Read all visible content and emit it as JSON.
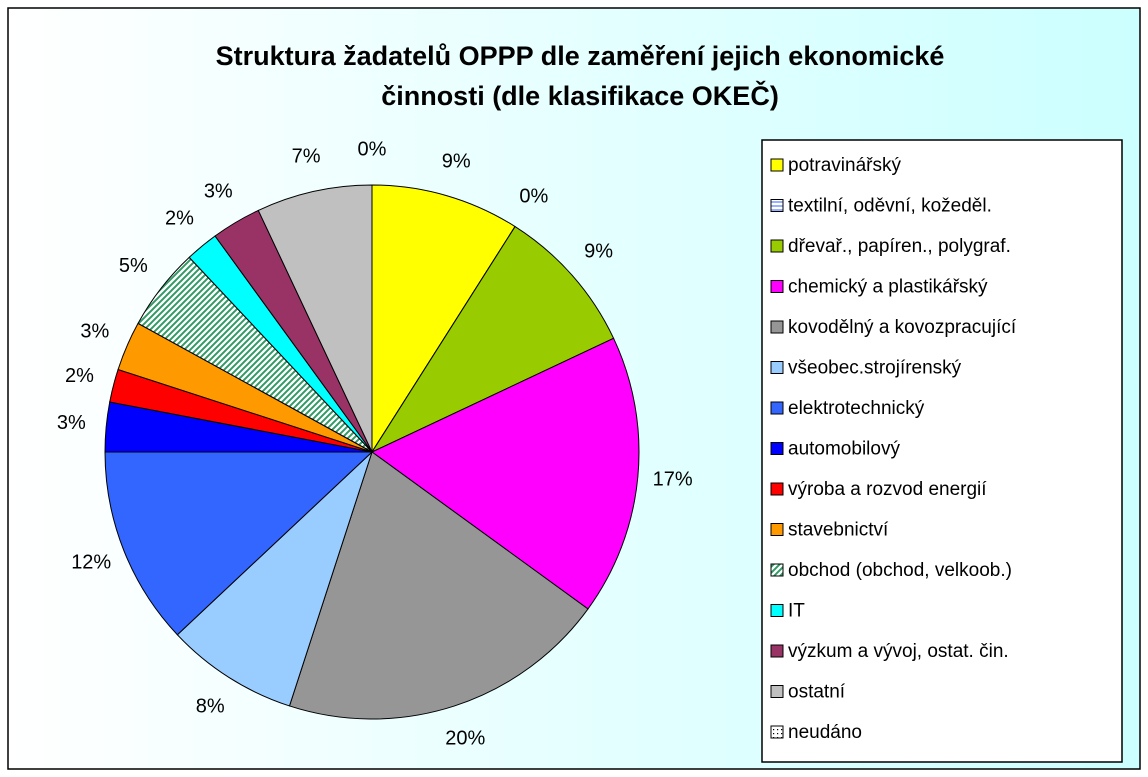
{
  "chart_data": {
    "type": "pie",
    "title": [
      "Struktura žadatelů OPPP dle zaměření jejich ekonomické",
      "činnosti (dle klasifikace OKEČ)"
    ],
    "categories": [
      "potravinářský",
      "textilní, oděvní, kožeděl.",
      "dřevař., papíren., polygraf.",
      "chemický a plastikářský",
      "kovodělný a kovozpracující",
      "všeobec.strojírenský",
      "elektrotechnický",
      "automobilový",
      "výroba a rozvod energií",
      "stavebnictví",
      "obchod (obchod, velkoob.)",
      "IT",
      "výzkum a vývoj, ostat. čin.",
      "ostatní",
      "neudáno"
    ],
    "values": [
      9,
      0,
      9,
      17,
      20,
      8,
      12,
      3,
      2,
      3,
      5,
      2,
      3,
      7,
      0
    ],
    "value_labels": [
      "9%",
      "0%",
      "9%",
      "17%",
      "20%",
      "8%",
      "12%",
      "3%",
      "2%",
      "3%",
      "5%",
      "2%",
      "3%",
      "7%",
      "0%"
    ],
    "colors": [
      "#ffff00",
      "#ffffff",
      "#99cc00",
      "#ff00ff",
      "#969696",
      "#99ccff",
      "#3366ff",
      "#0000ff",
      "#ff0000",
      "#ff9900",
      "#339966",
      "#00ffff",
      "#993366",
      "#c0c0c0",
      "#ffffff"
    ],
    "patterns": [
      null,
      "lines",
      null,
      null,
      null,
      null,
      null,
      null,
      null,
      null,
      "hatch",
      null,
      null,
      null,
      "dots"
    ]
  }
}
